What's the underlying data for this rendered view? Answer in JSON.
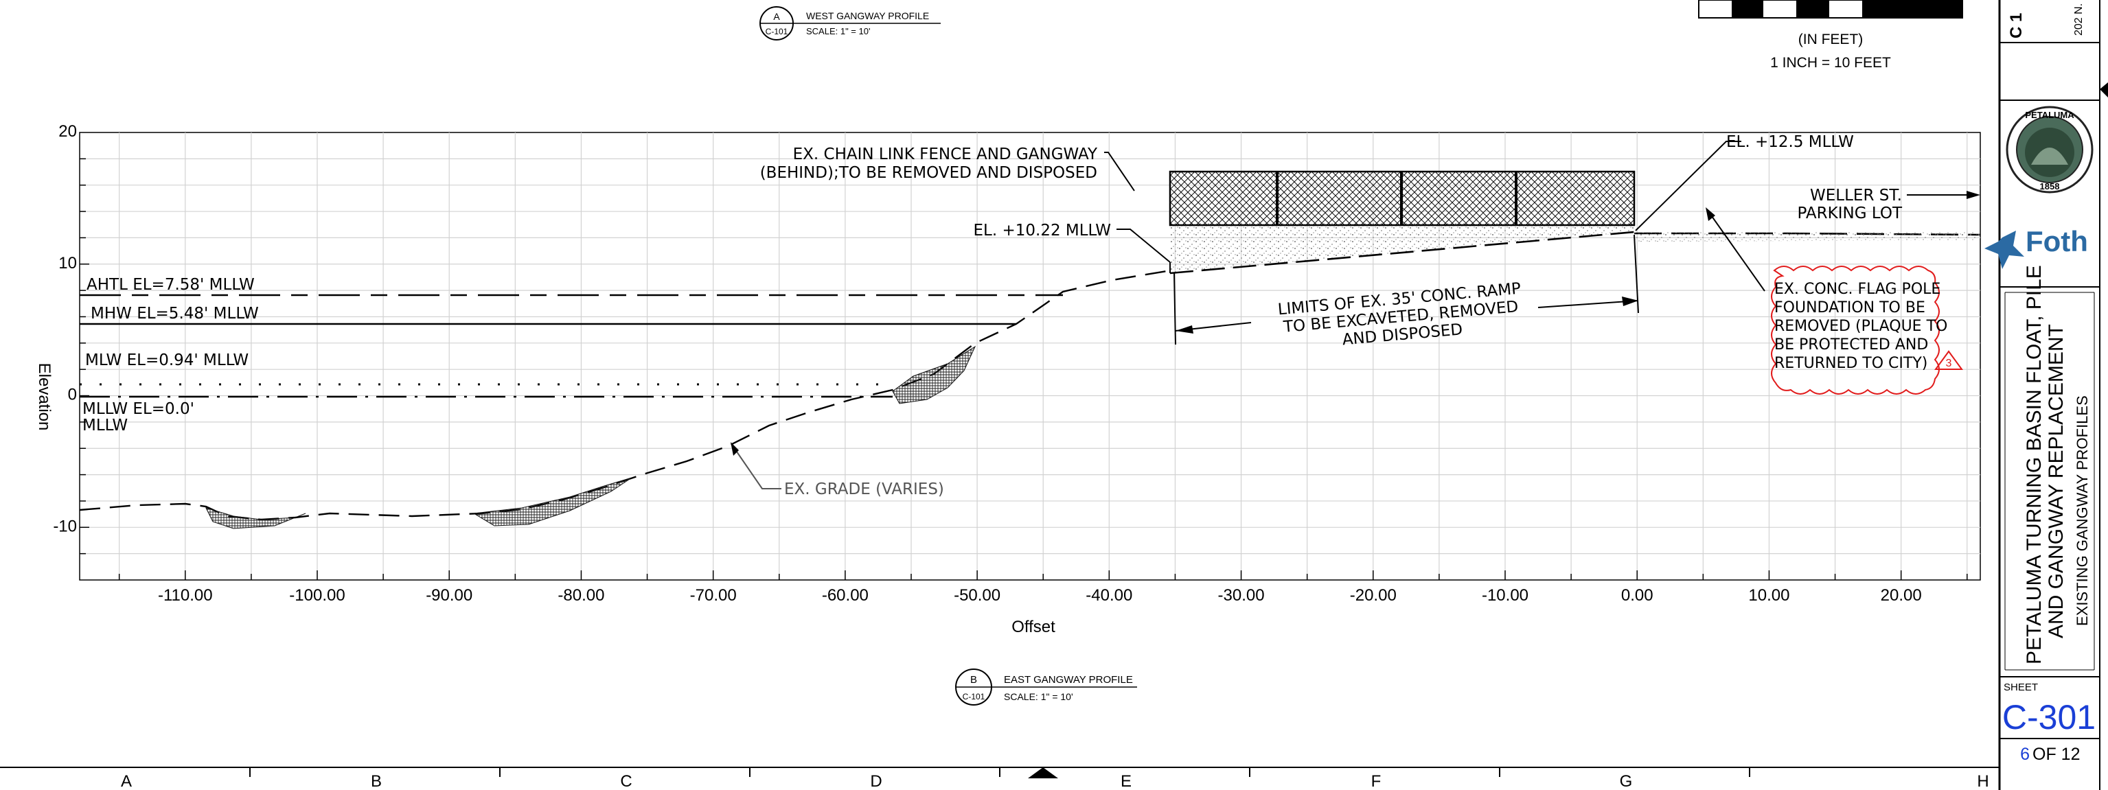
{
  "header": {
    "callout_a": {
      "letter": "A",
      "ref": "C-101",
      "title": "WEST GANGWAY PROFILE",
      "scale": "SCALE:  1\" = 10'"
    },
    "callout_b": {
      "letter": "B",
      "ref": "C-101",
      "title": "EAST GANGWAY PROFILE",
      "scale": "SCALE:  1\" = 10'"
    },
    "scale_units": "(IN FEET)",
    "scale_ratio": "1 INCH = 10 FEET"
  },
  "profile": {
    "ylabel": "Elevation",
    "xlabel": "Offset",
    "y_ticks": [
      "20",
      "10",
      "0",
      "-10"
    ],
    "x_ticks": [
      "-110.00",
      "-100.00",
      "-90.00",
      "-80.00",
      "-70.00",
      "-60.00",
      "-50.00",
      "-40.00",
      "-30.00",
      "-20.00",
      "-10.00",
      "0.00",
      "10.00",
      "20.00"
    ],
    "x_range": [
      -118,
      26
    ],
    "y_range": [
      -14,
      20
    ],
    "grid": true,
    "water_levels": [
      {
        "label": "AHTL EL=7.58' MLLW",
        "elevation": 7.58
      },
      {
        "label": "MHW EL=5.48' MLLW",
        "elevation": 5.48
      },
      {
        "label": "MLW EL=0.94' MLLW",
        "elevation": 0.94
      },
      {
        "label_1": "MLLW EL=0.0'",
        "label_2": "MLLW",
        "elevation": 0.0
      }
    ],
    "annotations": {
      "fence_1": "EX. CHAIN LINK FENCE AND GANGWAY",
      "fence_2": "(BEHIND);TO BE REMOVED AND DISPOSED",
      "el_low": "EL. +10.22 MLLW",
      "el_high": "EL. +12.5 MLLW",
      "weller_1": "WELLER ST.",
      "weller_2": "PARKING LOT",
      "limits_1": "LIMITS OF EX. 35' CONC. RAMP",
      "limits_2": "TO BE EXCAVETED, REMOVED",
      "limits_3": "AND DISPOSED",
      "grade": "EX. GRADE (VARIES)",
      "flag_1": "EX. CONC. FLAG POLE",
      "flag_2": "FOUNDATION TO BE",
      "flag_3": "REMOVED (PLAQUE TO",
      "flag_4": "BE PROTECTED AND",
      "flag_5": "RETURNED TO CITY)",
      "revision": "3"
    }
  },
  "title_block": {
    "sheet_code_top": "C 1",
    "address_fragment": "202 N.",
    "seal_top": "PETALUMA",
    "seal_year": "1858",
    "firm": "Foth",
    "project_1": "PETALUMA TURNING BASIN FLOAT, PILE",
    "project_2": "AND GANGWAY REPLACEMENT",
    "sheet_subtitle": "EXISTING GANGWAY PROFILES",
    "sheet_label": "SHEET",
    "sheet_number": "C-301",
    "page_current": "6",
    "page_total": "OF 12"
  },
  "grid_columns": [
    "A",
    "B",
    "C",
    "D",
    "E",
    "F",
    "G",
    "H"
  ],
  "colors": {
    "linework": "#000000",
    "grid": "#d2d2d2",
    "cloud": "#e11b1b",
    "sheet_number": "#1a3fd6",
    "firm": "#2b6aa3"
  }
}
